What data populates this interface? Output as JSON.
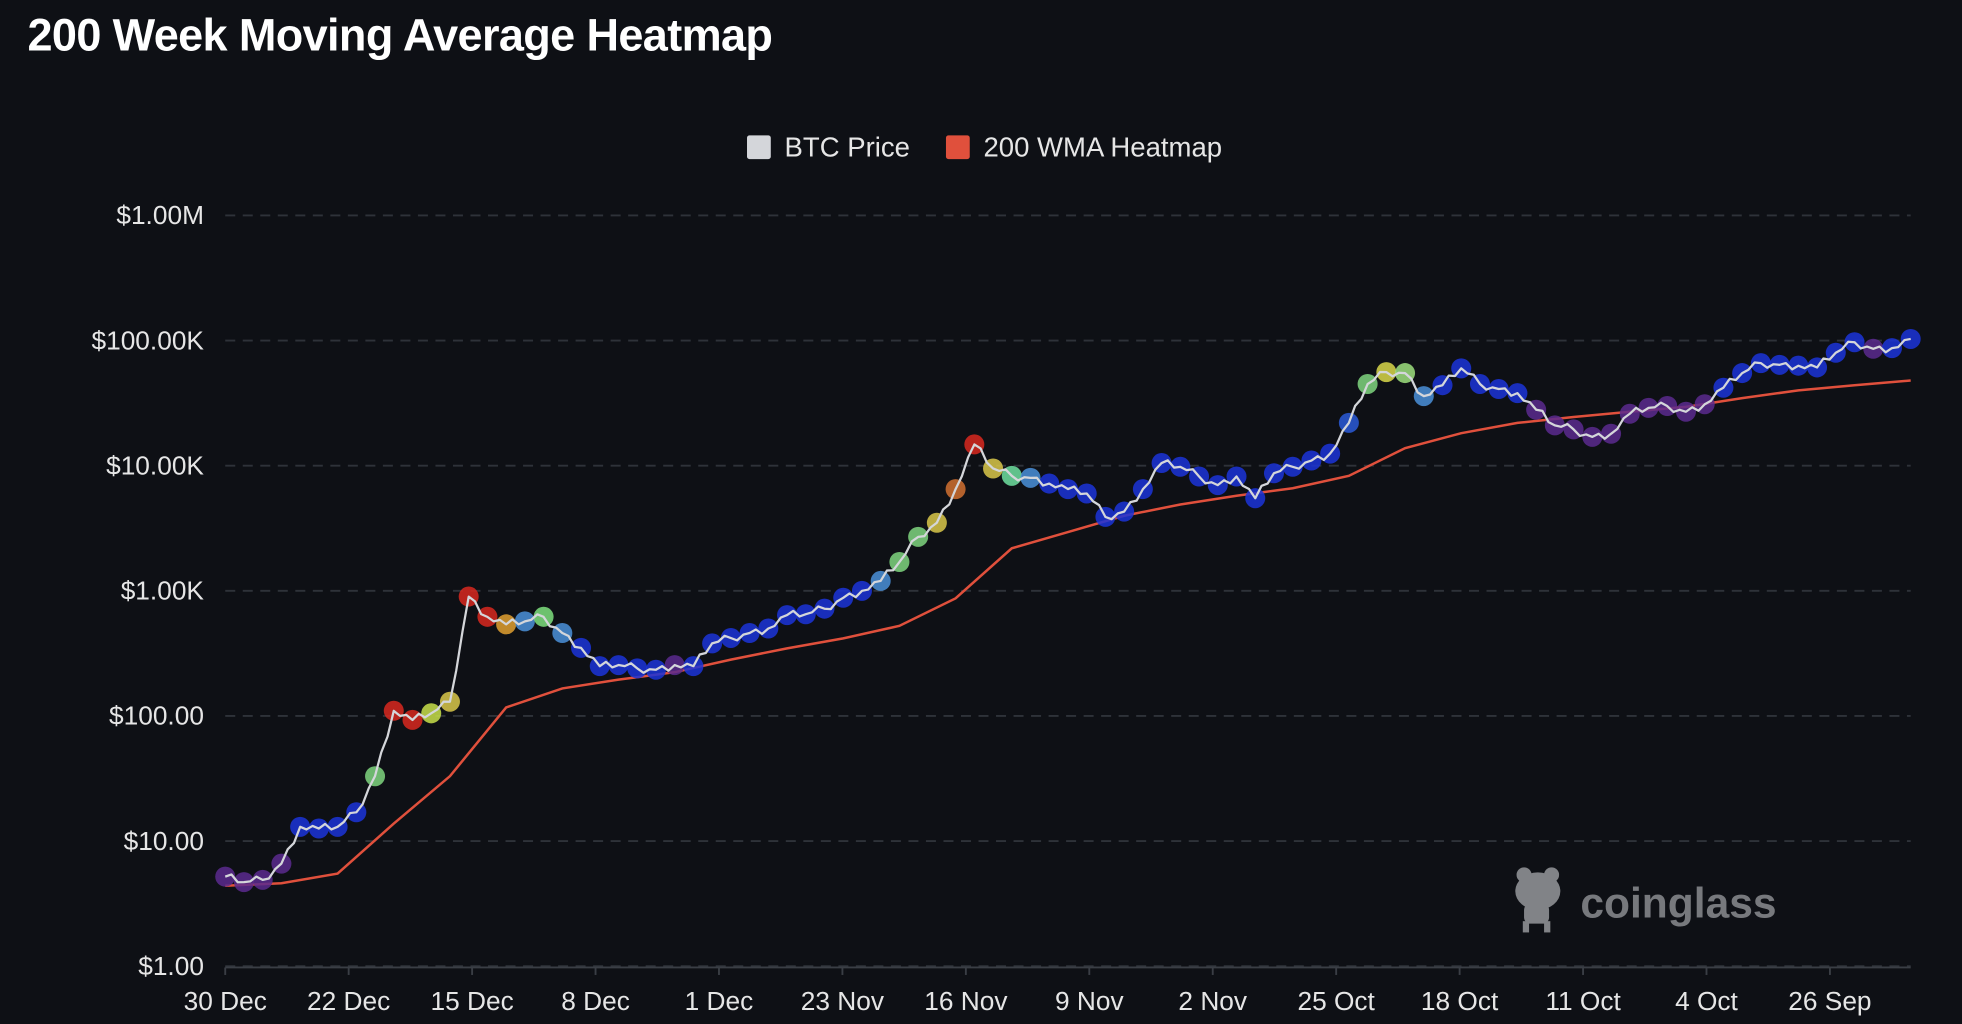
{
  "chart_data": {
    "type": "line",
    "title": "200 Week Moving Average Heatmap",
    "y_scale": "log",
    "ylim": [
      1,
      1000000
    ],
    "y_ticks": [
      1,
      10,
      100,
      1000,
      10000,
      100000,
      1000000
    ],
    "y_tick_labels": [
      "$1.00",
      "$10.00",
      "$100.00",
      "$1.00K",
      "$10.00K",
      "$100.00K",
      "$1.00M"
    ],
    "x_tick_labels": [
      "30 Dec",
      "22 Dec",
      "15 Dec",
      "8 Dec",
      "1 Dec",
      "23 Nov",
      "16 Nov",
      "9 Nov",
      "2 Nov",
      "25 Oct",
      "18 Oct",
      "11 Oct",
      "4 Oct",
      "26 Sep"
    ],
    "grid": true,
    "legend": {
      "placement": "top-center",
      "entries": [
        {
          "name": "BTC Price",
          "color": "#d4d6da"
        },
        {
          "name": "200 WMA Heatmap",
          "color": "#e0503c"
        }
      ]
    },
    "series": [
      {
        "name": "BTC Price",
        "color": "#d4d6da",
        "values": [
          5.2,
          4.7,
          4.9,
          6.6,
          13,
          12.6,
          13,
          17,
          33,
          110,
          93,
          105,
          130,
          900,
          620,
          540,
          570,
          620,
          460,
          350,
          250,
          255,
          240,
          234,
          255,
          250,
          380,
          420,
          460,
          500,
          640,
          650,
          720,
          880,
          1000,
          1200,
          1700,
          2700,
          3500,
          6500,
          14800,
          9500,
          8300,
          8000,
          7200,
          6500,
          6000,
          3900,
          4300,
          6500,
          10500,
          9800,
          8200,
          7000,
          8200,
          5500,
          8700,
          9800,
          11000,
          12500,
          22000,
          45000,
          56000,
          55000,
          36000,
          44000,
          60000,
          45000,
          41000,
          38000,
          28000,
          21000,
          19500,
          17000,
          18000,
          26000,
          29000,
          30000,
          27000,
          31000,
          42000,
          55000,
          66000,
          64000,
          63000,
          61000,
          80000,
          97000,
          86000,
          87000,
          103000
        ],
        "heat_colors": [
          "#5a2a8e",
          "#5a2a8e",
          "#5a2a8e",
          "#5a2a8e",
          "#1b34d8",
          "#1b34d8",
          "#1b34d8",
          "#1b34d8",
          "#7fd67f",
          "#d8281e",
          "#d8281e",
          "#c8e04a",
          "#d9c84a",
          "#d8281e",
          "#d8281e",
          "#e0a030",
          "#4a90d9",
          "#7ee07e",
          "#4a90d9",
          "#1b34d8",
          "#1b34d8",
          "#1b34d8",
          "#1b34d8",
          "#1b34d8",
          "#5a2a8e",
          "#1b34d8",
          "#1b34d8",
          "#1b34d8",
          "#1b34d8",
          "#1b34d8",
          "#1b34d8",
          "#1b34d8",
          "#1b34d8",
          "#1b34d8",
          "#1b34d8",
          "#4a90d9",
          "#7fd67f",
          "#7fd67f",
          "#d9c84a",
          "#d07030",
          "#d8281e",
          "#d9c84a",
          "#6ee0a0",
          "#4a90d9",
          "#1b34d8",
          "#1b34d8",
          "#1b34d8",
          "#1b34d8",
          "#1b34d8",
          "#1b34d8",
          "#1b34d8",
          "#1b34d8",
          "#1b34d8",
          "#1b34d8",
          "#1b34d8",
          "#1b34d8",
          "#1b34d8",
          "#1b34d8",
          "#1b34d8",
          "#1b34d8",
          "#2a5ad8",
          "#7fd67f",
          "#d9d84a",
          "#9ee07e",
          "#4a90d9",
          "#1b34d8",
          "#1b34d8",
          "#1b34d8",
          "#1b34d8",
          "#1b34d8",
          "#5a2a8e",
          "#5a2a8e",
          "#5a2a8e",
          "#5a2a8e",
          "#5a2a8e",
          "#5a2a8e",
          "#5a2a8e",
          "#5a2a8e",
          "#5a2a8e",
          "#5a2a8e",
          "#1b34d8",
          "#1b34d8",
          "#1b34d8",
          "#1b34d8",
          "#1b34d8",
          "#1b34d8",
          "#1b34d8",
          "#1b34d8",
          "#5a2a8e",
          "#1b34d8",
          "#1b34d8"
        ]
      },
      {
        "name": "200 WMA Heatmap",
        "color": "#e0503c",
        "values": [
          4.4,
          4.6,
          5.5,
          13.8,
          33,
          117,
          166,
          195,
          224,
          282,
          347,
          417,
          525,
          870,
          2190,
          2950,
          3980,
          4900,
          5750,
          6600,
          8300,
          13800,
          18200,
          22000,
          24500,
          27000,
          29500,
          34700,
          40000,
          44000,
          48000
        ]
      }
    ]
  },
  "watermark": {
    "text": "coinglass",
    "icon": "coinglass-mascot-icon"
  }
}
